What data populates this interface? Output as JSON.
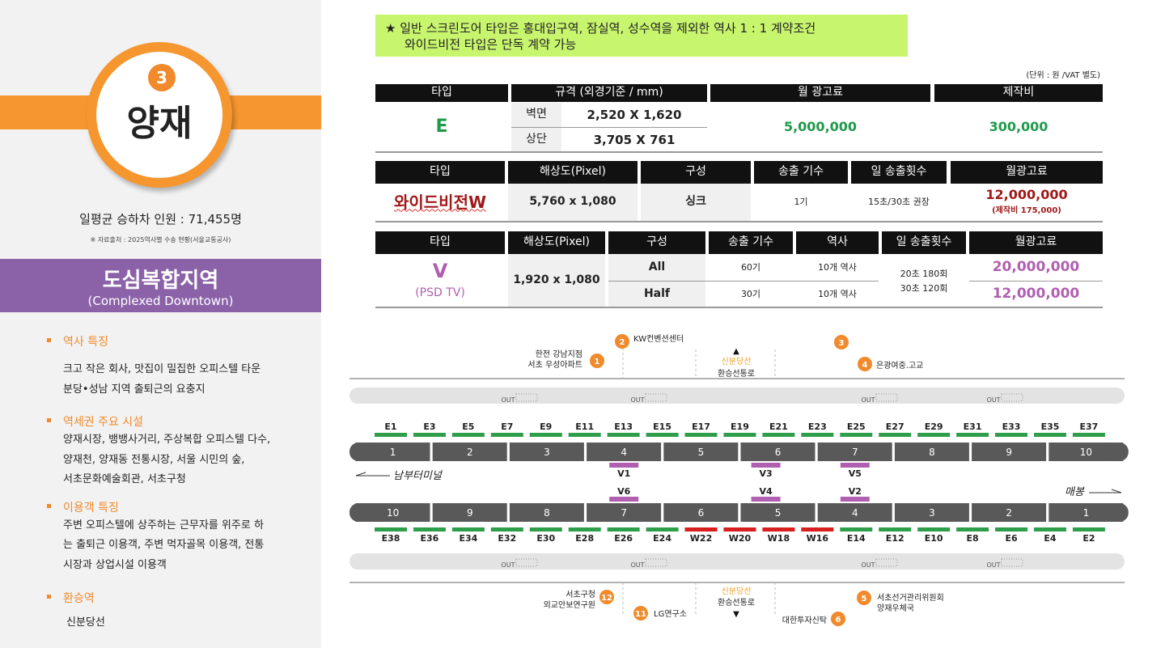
{
  "sidebar": {
    "station_number": "3",
    "station_name": "양재",
    "ridership": "일평균 승하차 인원 : 71,455명",
    "source": "※ 자료출처 : 2025역사별 수송 현황(서울교통공사)",
    "zone_title": "도심복합지역",
    "zone_subtitle": "(Complexed Downtown)",
    "sections": [
      {
        "heading": "역사 특징",
        "lines": [
          "크고 작은 회사, 맛집이 밀집한 오피스텔 타운",
          "분당•성남 지역 출퇴근의 요충지"
        ]
      },
      {
        "heading": "역세권 주요 시설",
        "lines": [
          "양재시장, 뱅뱅사거리, 주상복합 오피스텔 다수,",
          "양재천, 양재동 전통시장, 서울 시민의 숲,",
          "서초문화예술회관, 서초구청"
        ]
      },
      {
        "heading": "이용객 특징",
        "lines": [
          "주변 오피스텔에 상주하는 근무자를 위주로 하",
          "는 출퇴근 이용객, 주변 먹자골목 이용객, 전통",
          "시장과 상업시설 이용객"
        ]
      },
      {
        "heading": "환승역",
        "lines": [
          "신분당선"
        ]
      }
    ]
  },
  "notice": {
    "lines": [
      "★ 일반 스크린도어 타입은 홍대입구역, 잠실역, 성수역을 제외한 역사 1 : 1 계약조건",
      "와이드비전 타입은 단독 계약 가능"
    ]
  },
  "unit_note": "(단위 : 원 /VAT 별도)",
  "table_e": {
    "headers": [
      "타입",
      "규격 (외경기준 / mm)",
      "월 광고료",
      "제작비"
    ],
    "type": "E",
    "specs": [
      [
        "벽면",
        "2,520 X 1,620"
      ],
      [
        "상단",
        "3,705 X 761"
      ]
    ],
    "monthly_fee": "5,000,000",
    "production_fee": "300,000"
  },
  "table_w": {
    "headers": [
      "타입",
      "해상도(Pixel)",
      "구성",
      "송출 기수",
      "일 송출횟수",
      "월광고료"
    ],
    "type": "와이드비전W",
    "resolution": "5,760 x 1,080",
    "composition": "싱크",
    "units": "1기",
    "daily_plays": "15초/30초 권장",
    "monthly_fee": "12,000,000",
    "production_note": "(제작비 175,000)"
  },
  "table_v": {
    "headers": [
      "타입",
      "해상도(Pixel)",
      "구성",
      "송출 기수",
      "역사",
      "일 송출횟수",
      "월광고료"
    ],
    "type": "V",
    "type_sub": "(PSD TV)",
    "resolution": "1,920 x 1,080",
    "rows": [
      [
        "All",
        "60기",
        "10개 역사",
        "20,000,000"
      ],
      [
        "Half",
        "30기",
        "10개 역사",
        "12,000,000"
      ]
    ],
    "daily_plays": [
      "20초 180회",
      "30초 120회"
    ]
  },
  "map": {
    "colors": {
      "E": "#2f9e4a",
      "W": "#d81e1e",
      "V": "#b05fb0",
      "car": "#595959"
    },
    "top_doors": [
      "E1",
      "E3",
      "E5",
      "E7",
      "E9",
      "E11",
      "E13",
      "E15",
      "E17",
      "E19",
      "E21",
      "E23",
      "E25",
      "E27",
      "E29",
      "E31",
      "E33",
      "E35",
      "E37"
    ],
    "bottom_doors": [
      "E38",
      "E36",
      "E34",
      "E32",
      "E30",
      "E28",
      "E26",
      "E24",
      "W22",
      "W20",
      "W18",
      "W16",
      "E14",
      "E12",
      "E10",
      "E8",
      "E6",
      "E4",
      "E2"
    ],
    "top_cars": [
      "1",
      "2",
      "3",
      "4",
      "5",
      "6",
      "7",
      "8",
      "9",
      "10"
    ],
    "bottom_cars": [
      "10",
      "9",
      "8",
      "7",
      "6",
      "5",
      "4",
      "3",
      "2",
      "1"
    ],
    "top_v": [
      "V1",
      "V3",
      "V5"
    ],
    "bottom_v": [
      "V6",
      "V4",
      "V2"
    ],
    "direction_left": "남부터미널",
    "direction_right": "매봉",
    "out": "OUT",
    "transfer_top": [
      "신분당선",
      "환승선통로"
    ],
    "transfer_bottom": [
      "신분당선",
      "환승선통로"
    ],
    "exits": [
      {
        "number": "1",
        "lines": [
          "한전 강남지점",
          "서초 우성아파트"
        ]
      },
      {
        "number": "2",
        "lines": [
          "KW컨벤션센터"
        ]
      },
      {
        "number": "3"
      },
      {
        "number": "4",
        "lines": [
          "은광여중.고교"
        ]
      },
      {
        "number": "5",
        "lines": [
          "서초선거관리위원회",
          "양재우체국"
        ]
      },
      {
        "number": "6",
        "lines": [
          "대한투자신탁"
        ]
      },
      {
        "number": "11",
        "lines": [
          "LG연구소"
        ]
      },
      {
        "number": "12",
        "lines": [
          "서초구청",
          "외교안보연구원"
        ]
      }
    ]
  }
}
